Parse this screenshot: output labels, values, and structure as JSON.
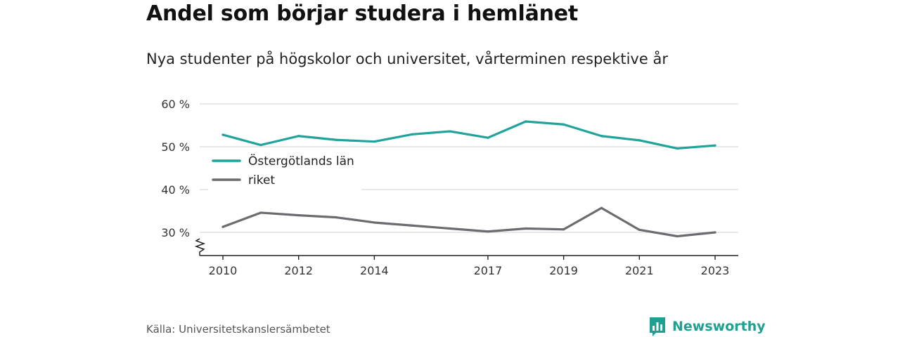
{
  "title": "Andel som börjar studera i hemlänet",
  "subtitle": "Nya studenter på högskolor och universitet, vårterminen respektive år",
  "source": "Källa: Universitetskanslersämbetet",
  "brand": {
    "name": "Newsworthy",
    "icon": "newsworthy-logo-icon",
    "color": "#1fa090"
  },
  "chart_data": {
    "type": "line",
    "x": [
      2010,
      2011,
      2012,
      2013,
      2014,
      2015,
      2016,
      2017,
      2018,
      2019,
      2020,
      2021,
      2022,
      2023
    ],
    "x_tick_labels": [
      "2010",
      "2012",
      "2014",
      "2017",
      "2019",
      "2021",
      "2023"
    ],
    "y_tick_labels": [
      "60 %",
      "50 %",
      "40 %",
      "30 %"
    ],
    "y_ticks": [
      60,
      50,
      40,
      30
    ],
    "ylim": [
      25,
      60
    ],
    "xlim": [
      2009.4,
      2023.6
    ],
    "y_axis_break": true,
    "grid": "horizontal",
    "legend_position": "left-middle",
    "series": [
      {
        "name": "Östergötlands län",
        "color": "#1fa39a",
        "values": [
          52.8,
          50.4,
          52.5,
          51.6,
          51.2,
          52.9,
          53.6,
          52.1,
          55.9,
          55.2,
          52.5,
          51.5,
          49.6,
          50.3
        ]
      },
      {
        "name": "riket",
        "color": "#6b6b70",
        "values": [
          31.3,
          34.6,
          34.0,
          33.5,
          32.3,
          31.6,
          30.9,
          30.2,
          30.9,
          30.7,
          35.7,
          30.6,
          29.1,
          30.0
        ]
      }
    ]
  }
}
